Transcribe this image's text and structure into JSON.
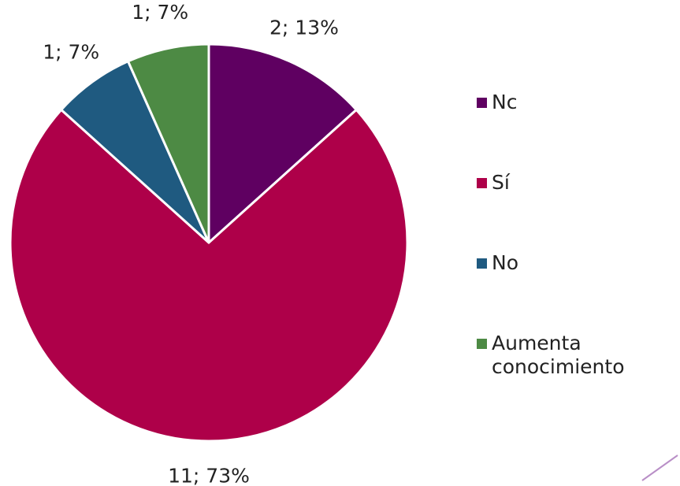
{
  "chart_data": {
    "type": "pie",
    "categories": [
      "Nc",
      "Sí",
      "No",
      "Aumenta conocimiento"
    ],
    "values": [
      2,
      11,
      1,
      1
    ],
    "value_labels": [
      "2; 13%",
      "11; 73%",
      "1; 7%",
      "1; 7%"
    ],
    "colors": [
      "#5f0061",
      "#ae0049",
      "#1f5a80",
      "#4d8a44"
    ]
  }
}
